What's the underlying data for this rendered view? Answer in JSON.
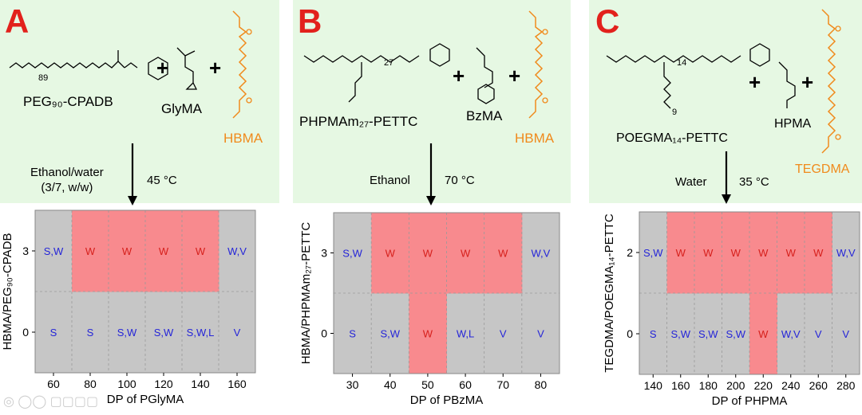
{
  "panels": [
    {
      "letter": "A",
      "macro_cta": "PEG₉₀-CPADB",
      "monomer": "GlyMA",
      "crosslinker": "HBMA",
      "solvent_line1": "Ethanol/water",
      "solvent_line2": "(3/7, w/w)",
      "temperature": "45 °C",
      "plus": "+",
      "scheme_labels": {
        "repeat": "89"
      }
    },
    {
      "letter": "B",
      "macro_cta": "PHPMAm₂₇-PETTC",
      "monomer": "BzMA",
      "crosslinker": "HBMA",
      "solvent_line1": "Ethanol",
      "temperature": "70 °C",
      "plus": "+",
      "scheme_labels": {
        "repeat": "27"
      }
    },
    {
      "letter": "C",
      "macro_cta": "POEGMA₁₄-PETTC",
      "monomer": "HPMA",
      "crosslinker": "TEGDMA",
      "solvent_line1": "Water",
      "temperature": "35 °C",
      "plus": "+",
      "scheme_labels": {
        "repeat": "14",
        "side": "9"
      }
    }
  ],
  "chart_data": [
    {
      "type": "heatmap",
      "xlabel": "DP of PGlyMA",
      "ylabel": "HBMA/PEG₉₀-CPADB",
      "x": [
        60,
        80,
        100,
        120,
        140,
        160
      ],
      "y": [
        3,
        0
      ],
      "cells": [
        [
          "S,W",
          "W",
          "W",
          "W",
          "W",
          "W,V"
        ],
        [
          "S",
          "S",
          "S,W",
          "S,W",
          "S,W,L",
          "V"
        ]
      ],
      "highlight_label": "W",
      "colors": {
        "highlight": "#f88a8e",
        "other": "#c6c6c6",
        "highlight_text": "#d6201c",
        "other_text": "#2424d8"
      }
    },
    {
      "type": "heatmap",
      "xlabel": "DP of PBzMA",
      "ylabel": "HBMA/PHPMAm₂₇-PETTC",
      "x": [
        30,
        40,
        50,
        60,
        70,
        80
      ],
      "y": [
        3,
        0
      ],
      "cells": [
        [
          "S,W",
          "W",
          "W",
          "W",
          "W",
          "W,V"
        ],
        [
          "S",
          "S,W",
          "W",
          "W,L",
          "V",
          "V"
        ]
      ],
      "highlight_label": "W",
      "colors": {
        "highlight": "#f88a8e",
        "other": "#c6c6c6",
        "highlight_text": "#d6201c",
        "other_text": "#2424d8"
      }
    },
    {
      "type": "heatmap",
      "xlabel": "DP of PHPMA",
      "ylabel": "TEGDMA/POEGMA₁₄-PETTC",
      "x": [
        140,
        160,
        180,
        200,
        220,
        240,
        260,
        280
      ],
      "y": [
        2,
        0
      ],
      "cells": [
        [
          "S,W",
          "W",
          "W",
          "W",
          "W",
          "W",
          "W",
          "W,V"
        ],
        [
          "S",
          "S,W",
          "S,W",
          "S,W",
          "W",
          "W,V",
          "V",
          "V"
        ]
      ],
      "highlight_label": "W",
      "colors": {
        "highlight": "#f88a8e",
        "other": "#c6c6c6",
        "highlight_text": "#d6201c",
        "other_text": "#2424d8"
      }
    }
  ]
}
